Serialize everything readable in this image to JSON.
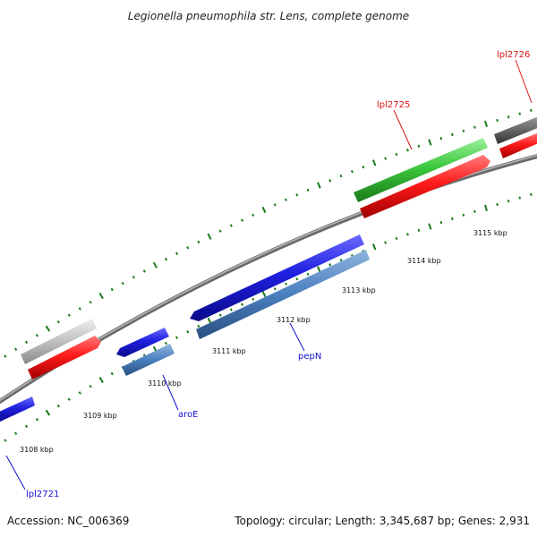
{
  "title": "Legionella pneumophila str. Lens, complete genome",
  "footer": {
    "accession": "Accession: NC_006369",
    "summary": "Topology: circular; Length: 3,345,687 bp; Genes: 2,931"
  },
  "colors": {
    "backbone": "#8a8a8a",
    "tick": "#1a7a1a",
    "forward_gene": "#1f1fe0",
    "forward_gene_alt": "#4a7fbf",
    "reverse_cds": "#ff1a1a",
    "reverse_gene_green": "#3cc83c",
    "gray_feature": "#c0c0c0",
    "dark_feature": "#666666",
    "label_red": "#dd1111",
    "label_blue": "#1010cc"
  },
  "scale_labels": [
    "3108 kbp",
    "3109 kbp",
    "3110 kbp",
    "3111 kbp",
    "3112 kbp",
    "3113 kbp",
    "3114 kbp",
    "3115 kbp"
  ],
  "gene_labels": [
    {
      "text": "lpl2721",
      "color_key": "label_blue"
    },
    {
      "text": "aroE",
      "color_key": "label_blue"
    },
    {
      "text": "pepN",
      "color_key": "label_blue"
    },
    {
      "text": "lpl2725",
      "color_key": "label_red"
    },
    {
      "text": "lpl2726",
      "color_key": "label_red"
    }
  ]
}
